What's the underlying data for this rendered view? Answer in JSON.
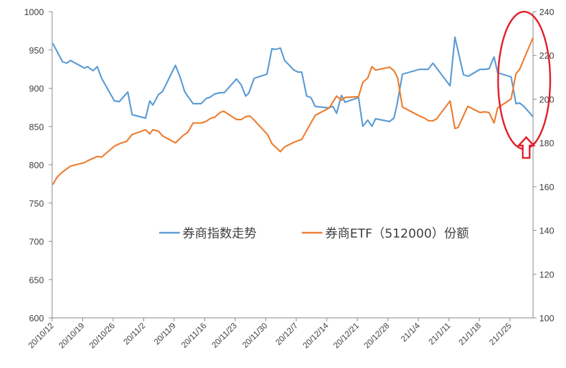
{
  "chart_data": {
    "type": "line",
    "title": "",
    "legend_position": "center",
    "grid": false,
    "x_unit": "trading day index since 20/10/12",
    "xlim": [
      0,
      78.8
    ],
    "x_tick_positions": [
      0,
      5,
      10,
      15,
      20,
      25,
      30,
      35,
      40,
      45,
      50,
      55,
      60,
      65,
      70,
      75
    ],
    "x_tick_labels": [
      "20/10/12",
      "20/10/19",
      "20/10/26",
      "20/11/2",
      "20/11/9",
      "20/11/16",
      "20/11/23",
      "20/11/30",
      "20/12/7",
      "20/12/14",
      "20/12/21",
      "20/12/28",
      "21/1/4",
      "21/1/11",
      "21/1/18",
      "21/1/25"
    ],
    "y_left": {
      "lim": [
        600,
        1000
      ],
      "ticks": [
        600,
        650,
        700,
        750,
        800,
        850,
        900,
        950,
        1000
      ]
    },
    "y_right": {
      "lim": [
        100,
        240
      ],
      "ticks": [
        100,
        120,
        140,
        160,
        180,
        200,
        220,
        240
      ]
    },
    "series": [
      {
        "name": "券商指数走势",
        "axis": "left",
        "color": "#5B9BD5",
        "points": [
          [
            0.1,
            958.7
          ],
          [
            1.7,
            934.5
          ],
          [
            2.4,
            932.7
          ],
          [
            3.0,
            936.3
          ],
          [
            3.8,
            932.7
          ],
          [
            5.3,
            926.4
          ],
          [
            5.8,
            928.2
          ],
          [
            6.7,
            922.9
          ],
          [
            7.4,
            928.2
          ],
          [
            8.1,
            913.0
          ],
          [
            10.2,
            883.4
          ],
          [
            11.0,
            882.5
          ],
          [
            12.4,
            895.1
          ],
          [
            13.1,
            865.5
          ],
          [
            15.3,
            861.0
          ],
          [
            16.0,
            883.4
          ],
          [
            16.5,
            878.0
          ],
          [
            17.4,
            891.5
          ],
          [
            18.1,
            896.0
          ],
          [
            20.2,
            930.0
          ],
          [
            21.0,
            913.9
          ],
          [
            21.7,
            896.0
          ],
          [
            22.2,
            889.7
          ],
          [
            23.1,
            879.8
          ],
          [
            24.4,
            879.8
          ],
          [
            25.3,
            887.0
          ],
          [
            25.8,
            887.9
          ],
          [
            26.6,
            892.4
          ],
          [
            27.5,
            894.2
          ],
          [
            28.2,
            894.2
          ],
          [
            30.2,
            912.1
          ],
          [
            31.0,
            904.0
          ],
          [
            31.7,
            889.7
          ],
          [
            32.2,
            893.3
          ],
          [
            33.1,
            913.0
          ],
          [
            35.2,
            918.4
          ],
          [
            36.0,
            951.6
          ],
          [
            36.6,
            950.7
          ],
          [
            37.4,
            952.5
          ],
          [
            38.1,
            936.3
          ],
          [
            39.6,
            923.8
          ],
          [
            40.3,
            921.1
          ],
          [
            40.9,
            921.1
          ],
          [
            41.7,
            889.7
          ],
          [
            42.4,
            887.9
          ],
          [
            43.1,
            876.2
          ],
          [
            45.2,
            874.4
          ],
          [
            46.0,
            876.2
          ],
          [
            46.6,
            867.3
          ],
          [
            47.4,
            890.6
          ],
          [
            48.0,
            881.6
          ],
          [
            50.2,
            887.9
          ],
          [
            50.9,
            850.2
          ],
          [
            51.7,
            858.3
          ],
          [
            52.4,
            850.2
          ],
          [
            53.0,
            860.1
          ],
          [
            55.3,
            856.5
          ],
          [
            56.0,
            861.0
          ],
          [
            56.5,
            878.0
          ],
          [
            57.4,
            918.4
          ],
          [
            60.2,
            924.7
          ],
          [
            61.6,
            924.7
          ],
          [
            62.4,
            932.7
          ],
          [
            65.2,
            903.1
          ],
          [
            66.0,
            966.8
          ],
          [
            67.4,
            917.5
          ],
          [
            68.2,
            915.7
          ],
          [
            70.1,
            924.7
          ],
          [
            70.9,
            924.7
          ],
          [
            71.6,
            925.6
          ],
          [
            72.4,
            940.8
          ],
          [
            73.0,
            920.2
          ],
          [
            75.2,
            914.8
          ],
          [
            76.0,
            879.8
          ],
          [
            76.6,
            880.7
          ],
          [
            77.3,
            876.2
          ],
          [
            78.8,
            862.8
          ]
        ]
      },
      {
        "name": "券商ETF（512000）份额",
        "axis": "right",
        "color": "#ED7D31",
        "points": [
          [
            0.1,
            160.9
          ],
          [
            0.8,
            164.3
          ],
          [
            1.6,
            166.5
          ],
          [
            3.0,
            169.4
          ],
          [
            5.2,
            170.9
          ],
          [
            6.1,
            172.2
          ],
          [
            7.4,
            173.8
          ],
          [
            8.1,
            173.5
          ],
          [
            10.2,
            178.5
          ],
          [
            11.1,
            179.7
          ],
          [
            12.2,
            180.7
          ],
          [
            13.1,
            183.8
          ],
          [
            15.3,
            186.0
          ],
          [
            16.0,
            184.1
          ],
          [
            16.5,
            186.0
          ],
          [
            17.4,
            185.4
          ],
          [
            18.1,
            183.2
          ],
          [
            20.2,
            180.0
          ],
          [
            21.5,
            183.5
          ],
          [
            22.2,
            184.8
          ],
          [
            23.1,
            189.1
          ],
          [
            24.4,
            189.1
          ],
          [
            25.2,
            189.8
          ],
          [
            26.0,
            191.3
          ],
          [
            26.6,
            191.7
          ],
          [
            27.5,
            193.9
          ],
          [
            28.1,
            194.5
          ],
          [
            30.2,
            190.7
          ],
          [
            31.0,
            190.7
          ],
          [
            31.7,
            192.0
          ],
          [
            32.4,
            192.3
          ],
          [
            33.1,
            190.4
          ],
          [
            35.3,
            183.8
          ],
          [
            36.0,
            179.7
          ],
          [
            37.4,
            176.0
          ],
          [
            38.1,
            178.2
          ],
          [
            39.7,
            180.4
          ],
          [
            40.9,
            181.6
          ],
          [
            43.1,
            192.6
          ],
          [
            45.4,
            196.0
          ],
          [
            46.6,
            201.4
          ],
          [
            47.4,
            199.5
          ],
          [
            48.0,
            200.8
          ],
          [
            50.2,
            201.1
          ],
          [
            50.9,
            207.7
          ],
          [
            51.7,
            209.6
          ],
          [
            52.4,
            214.9
          ],
          [
            53.0,
            213.3
          ],
          [
            55.3,
            214.6
          ],
          [
            56.0,
            213.0
          ],
          [
            56.6,
            209.9
          ],
          [
            57.4,
            196.4
          ],
          [
            60.2,
            192.3
          ],
          [
            61.0,
            191.3
          ],
          [
            61.7,
            190.1
          ],
          [
            62.4,
            190.1
          ],
          [
            63.0,
            191.0
          ],
          [
            65.2,
            199.2
          ],
          [
            66.0,
            186.6
          ],
          [
            66.5,
            187.0
          ],
          [
            68.1,
            196.7
          ],
          [
            70.1,
            193.9
          ],
          [
            70.9,
            194.2
          ],
          [
            71.6,
            193.9
          ],
          [
            72.4,
            189.1
          ],
          [
            73.0,
            196.0
          ],
          [
            75.2,
            200.1
          ],
          [
            76.0,
            211.7
          ],
          [
            76.6,
            213.6
          ],
          [
            78.2,
            224.3
          ],
          [
            78.8,
            228.1
          ]
        ]
      }
    ],
    "annotation_color": "#E0202A"
  },
  "legend": {
    "series1": "券商指数走势",
    "series2": "券商ETF（512000）份额"
  }
}
